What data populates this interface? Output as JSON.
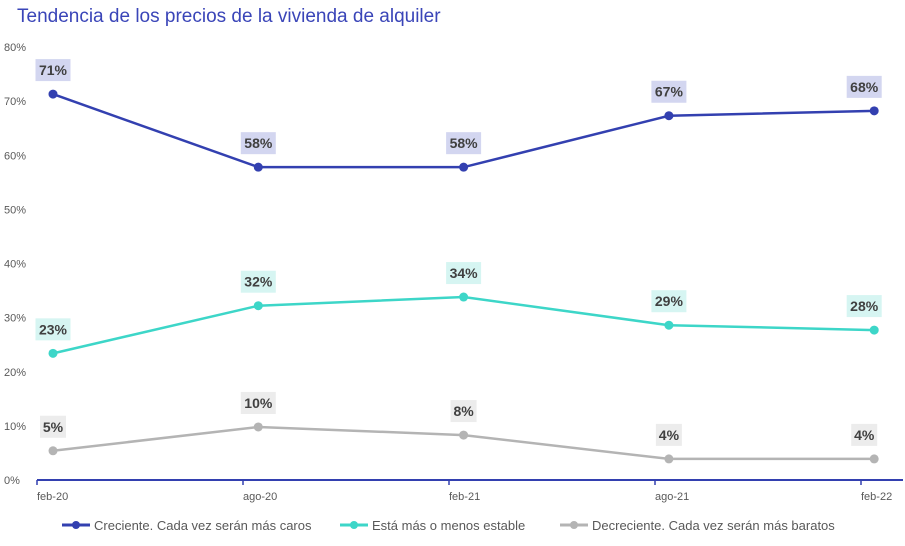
{
  "chart_data": {
    "type": "line",
    "title": "Tendencia de los precios de la vivienda de alquiler",
    "categories": [
      "feb-20",
      "ago-20",
      "feb-21",
      "ago-21",
      "feb-22"
    ],
    "y_ticks": [
      "0%",
      "10%",
      "20%",
      "30%",
      "40%",
      "50%",
      "60%",
      "70%",
      "80%"
    ],
    "ylim": [
      0,
      80
    ],
    "grid": false,
    "legend_position": "bottom",
    "series": [
      {
        "name": "Creciente. Cada vez serán más caros",
        "color": "#3340b0",
        "label_bg": "#d3d6f0",
        "values": [
          71.3,
          57.8,
          57.8,
          67.3,
          68.2
        ],
        "labels": [
          "71%",
          "58%",
          "58%",
          "67%",
          "68%"
        ]
      },
      {
        "name": "Está más o menos estable",
        "color": "#3dd6c8",
        "label_bg": "#d6f5f2",
        "values": [
          23.4,
          32.2,
          33.8,
          28.6,
          27.7
        ],
        "labels": [
          "23%",
          "32%",
          "34%",
          "29%",
          "28%"
        ]
      },
      {
        "name": "Decreciente. Cada vez serán más baratos",
        "color": "#b4b4b4",
        "label_bg": "#ececec",
        "values": [
          5.4,
          9.8,
          8.3,
          3.9,
          3.9
        ],
        "labels": [
          "5%",
          "10%",
          "8%",
          "4%",
          "4%"
        ]
      }
    ]
  }
}
